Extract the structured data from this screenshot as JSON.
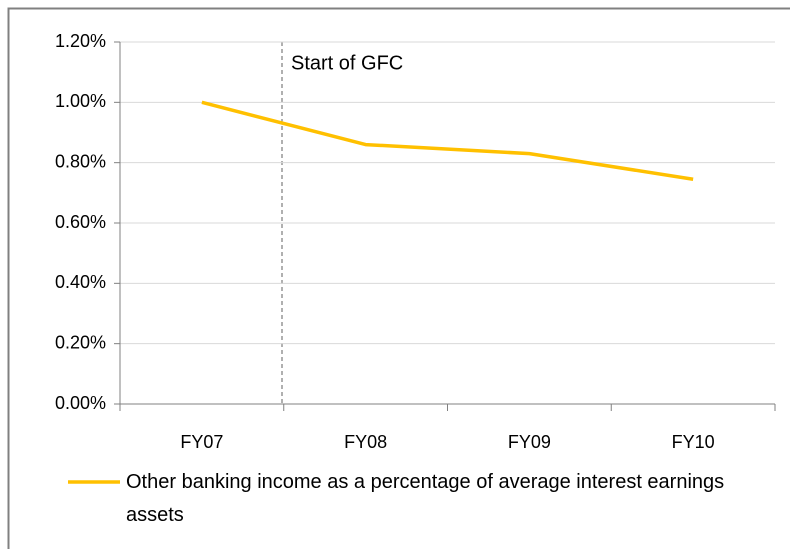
{
  "chart_data": {
    "type": "line",
    "annotation": "Start of GFC",
    "categories": [
      "FY07",
      "FY08",
      "FY09",
      "FY10"
    ],
    "series": [
      {
        "name": "Other banking income as a percentage of average interest earnings assets",
        "color": "#ffc000",
        "values": [
          1.0,
          0.86,
          0.83,
          0.745
        ]
      }
    ],
    "ylim": [
      0,
      1.2
    ],
    "yticks": [
      {
        "value": 0,
        "label": "0.00%"
      },
      {
        "value": 0.2,
        "label": "0.20%"
      },
      {
        "value": 0.4,
        "label": "0.40%"
      },
      {
        "value": 0.6,
        "label": "0.60%"
      },
      {
        "value": 0.8,
        "label": "0.80%"
      },
      {
        "value": 1.0,
        "label": "1.00%"
      },
      {
        "value": 1.2,
        "label": "1.20%"
      }
    ],
    "grid": true,
    "legend": "bottom"
  }
}
